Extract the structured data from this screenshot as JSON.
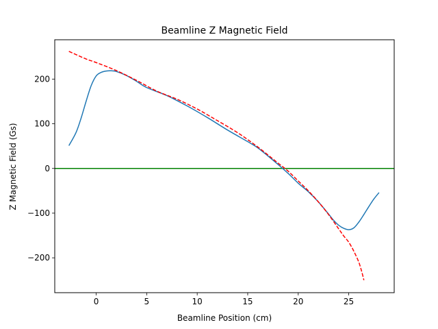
{
  "chart_data": {
    "type": "line",
    "title": "Beamline Z Magnetic Field",
    "xlabel": "Beamline Position (cm)",
    "ylabel": "Z Magnetic Field (Gs)",
    "xlim": [
      -4.1,
      29.5
    ],
    "ylim": [
      -278,
      288
    ],
    "xticks": [
      0,
      5,
      10,
      15,
      20,
      25
    ],
    "yticks": [
      -200,
      -100,
      0,
      100,
      200
    ],
    "xtick_labels": [
      "0",
      "5",
      "10",
      "15",
      "20",
      "25"
    ],
    "ytick_labels": [
      "−200",
      "−100",
      "0",
      "100",
      "200"
    ],
    "grid": false,
    "legend": "none",
    "series": [
      {
        "style": "solid",
        "color": "#1f77b4",
        "x": [
          -2.7,
          -2.0,
          -1.5,
          -1.0,
          -0.5,
          0.0,
          0.5,
          1.0,
          1.5,
          2.0,
          3.0,
          4.0,
          5.0,
          7.0,
          9.0,
          11.0,
          13.0,
          15.0,
          16.0,
          17.0,
          18.0,
          19.0,
          20.0,
          21.0,
          22.0,
          23.0,
          23.5,
          24.0,
          24.5,
          25.0,
          25.5,
          26.0,
          26.5,
          27.0,
          27.5,
          28.0
        ],
        "y": [
          51,
          80,
          112,
          150,
          185,
          207,
          215,
          218,
          218.5,
          217,
          208,
          195,
          181,
          163,
          140,
          114,
          86,
          60,
          46,
          28,
          9,
          -11,
          -33,
          -52,
          -75,
          -102,
          -116,
          -127,
          -134,
          -137,
          -133,
          -120,
          -103,
          -85,
          -68,
          -54
        ]
      },
      {
        "style": "dashed",
        "color": "#ff0000",
        "x": [
          -2.7,
          -1.0,
          0.0,
          2.0,
          4.0,
          6.0,
          8.0,
          10.0,
          12.0,
          14.0,
          16.0,
          18.0,
          19.0,
          20.0,
          21.0,
          22.0,
          23.0,
          24.0,
          24.5,
          25.0,
          25.5,
          26.0,
          26.3,
          26.5
        ],
        "y": [
          262,
          245,
          237,
          219,
          197,
          173,
          155,
          133,
          107,
          80,
          48,
          12,
          -6,
          -28,
          -50,
          -75,
          -103,
          -135,
          -151,
          -165,
          -185,
          -210,
          -232,
          -250
        ]
      },
      {
        "style": "solid",
        "color": "#008000",
        "x": [
          -4.1,
          29.5
        ],
        "y": [
          0,
          0
        ]
      }
    ]
  }
}
